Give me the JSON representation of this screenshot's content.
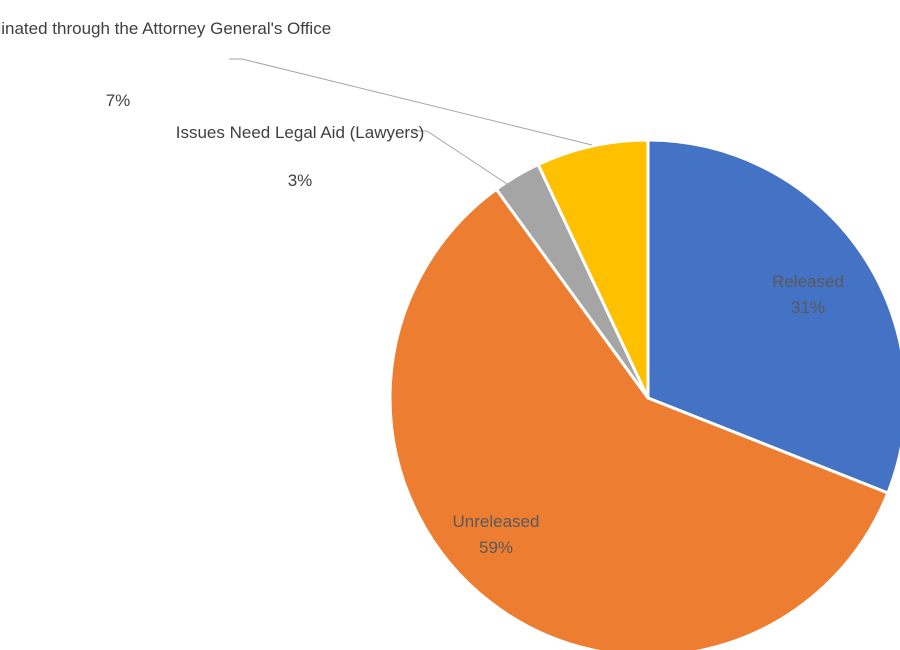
{
  "chart_data": {
    "type": "pie",
    "title": "",
    "start_angle_deg": 0,
    "direction": "clockwise",
    "slices": [
      {
        "name": "Released",
        "value": 31,
        "label": "31%",
        "color": "#4472C4"
      },
      {
        "name": "Unreleased",
        "value": 59,
        "label": "59%",
        "color": "#ED7D31"
      },
      {
        "name": "Issues Need Legal Aid (Lawyers)",
        "value": 3,
        "label": "3%",
        "color": "#A5A5A5"
      },
      {
        "name": "Issues coordinated through the Attorney General's Office",
        "value": 7,
        "label": "7%",
        "color": "#FFC000"
      }
    ]
  }
}
